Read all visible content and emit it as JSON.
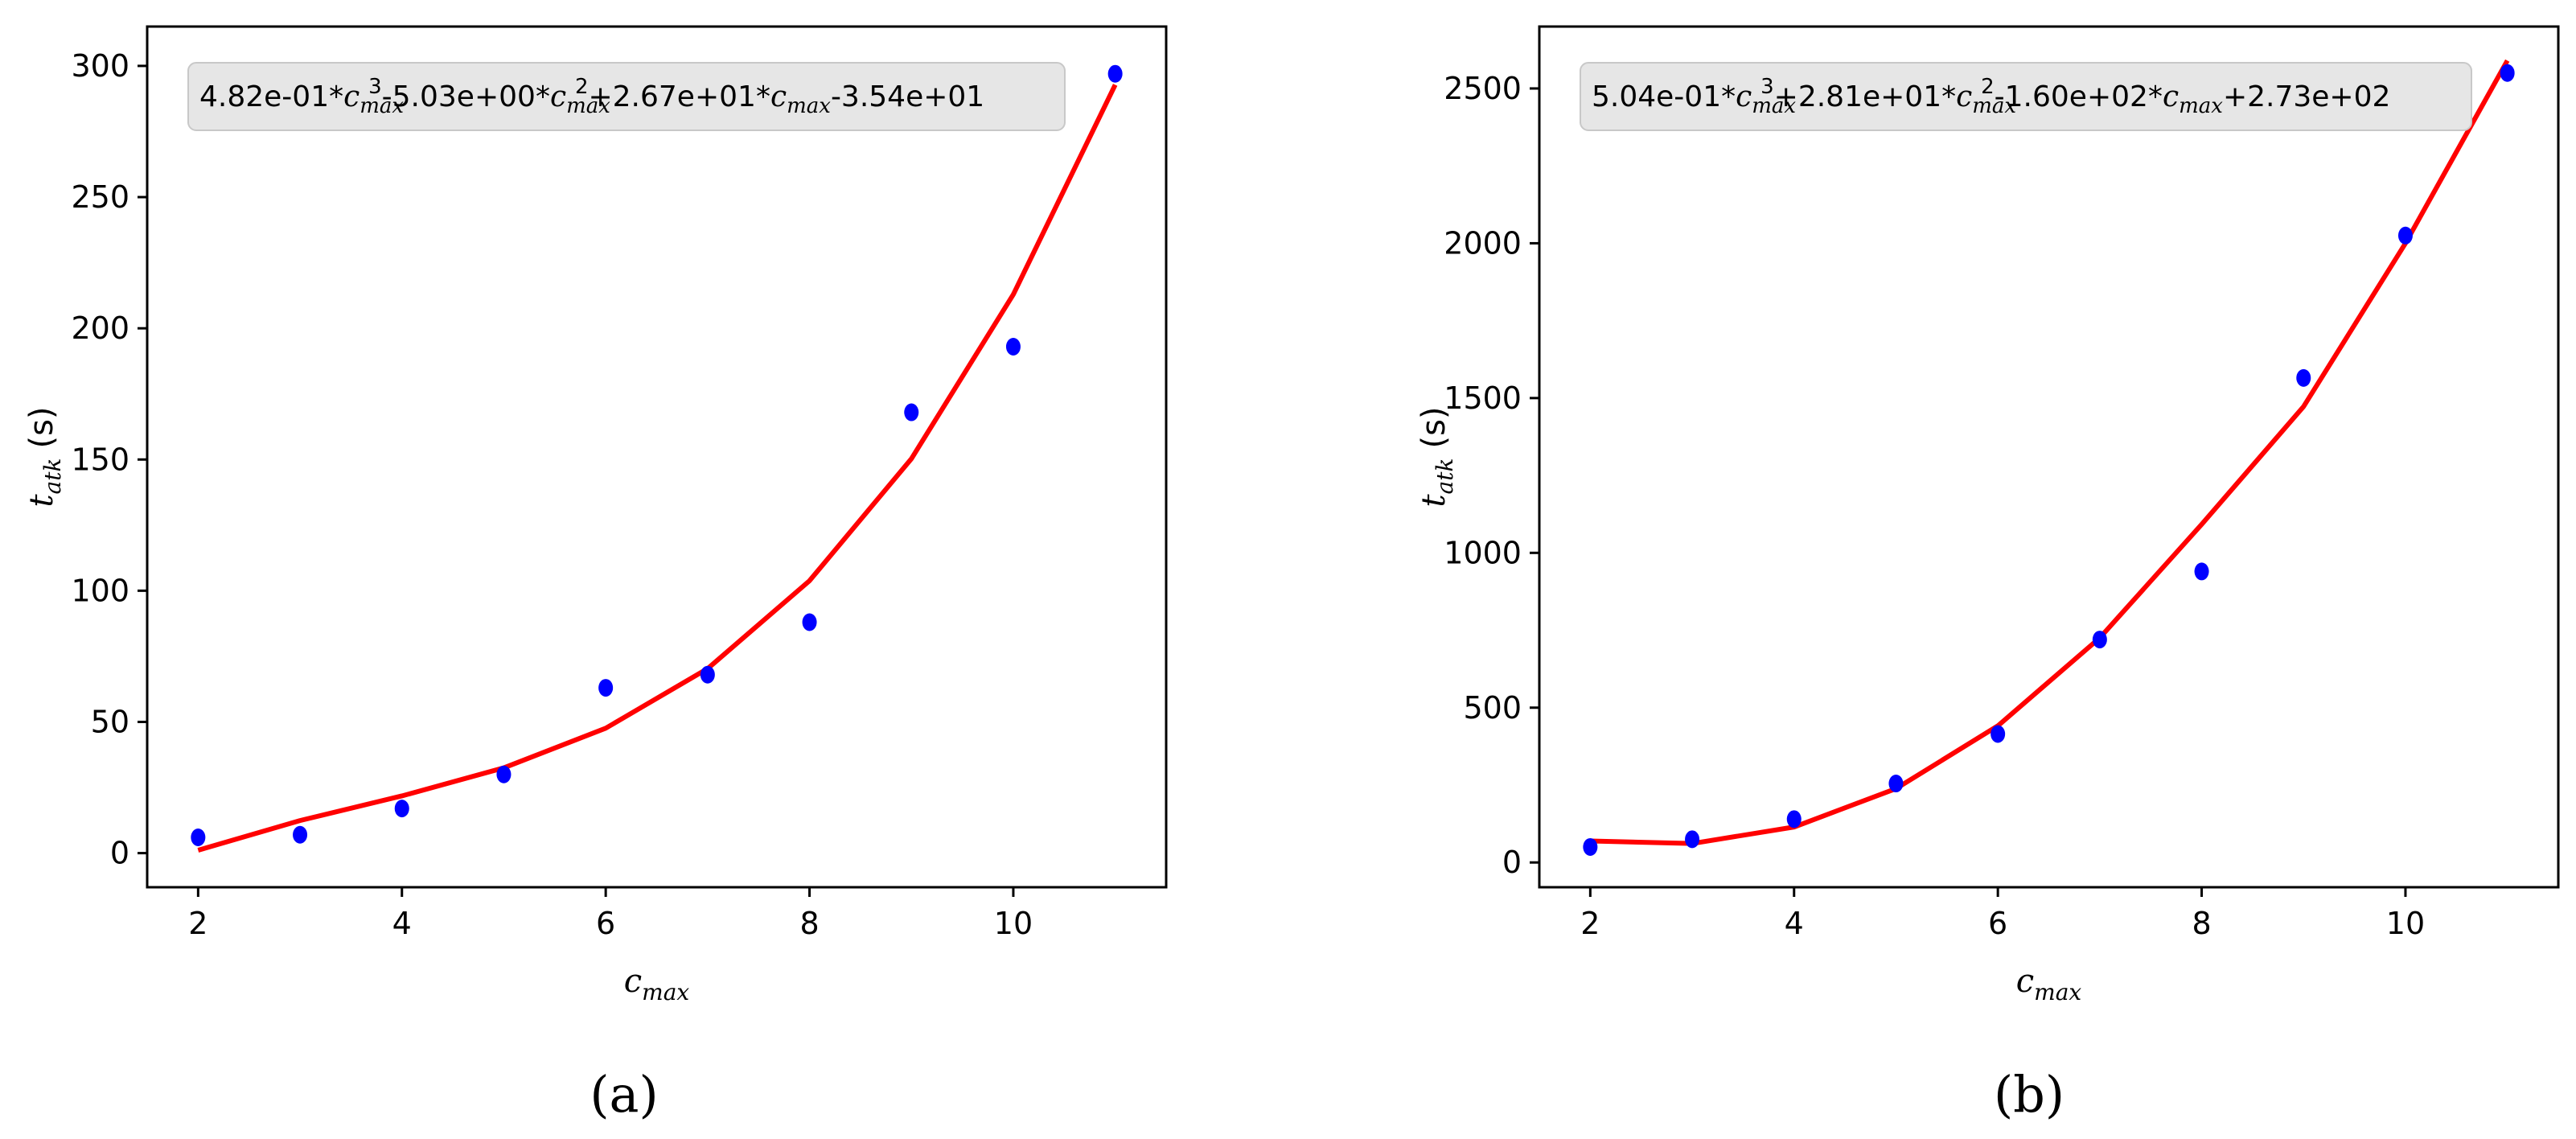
{
  "chart_data": [
    {
      "type": "scatter",
      "caption": "(a)",
      "equation": {
        "c3": "4.82e-01",
        "c2": "-5.03e+00",
        "c1": "+2.67e+01",
        "c0": "-3.54e+01"
      },
      "xlabel": "c",
      "xlabel_sub": "max",
      "ylabel": "t",
      "ylabel_sub": "atk",
      "ylabel_unit": "(s)",
      "xlim": [
        1.5,
        11.5
      ],
      "ylim": [
        -13,
        315
      ],
      "xticks": [
        2,
        4,
        6,
        8,
        10
      ],
      "yticks": [
        0,
        50,
        100,
        150,
        200,
        250,
        300
      ],
      "grid": false,
      "colors": {
        "points": "#0000ff",
        "fit": "#ff0000"
      },
      "series": [
        {
          "kind": "scatter",
          "x": [
            2,
            3,
            4,
            5,
            6,
            7,
            8,
            9,
            10,
            11
          ],
          "y": [
            6,
            7,
            17,
            30,
            63,
            68,
            88,
            168,
            193,
            297
          ]
        },
        {
          "kind": "line",
          "x": [
            2,
            3,
            4,
            5,
            6,
            7,
            8,
            9,
            10,
            11
          ],
          "y": [
            1.1,
            12.4,
            21.8,
            32.5,
            47.6,
            70.3,
            103.8,
            150.3,
            212.9,
            292.8
          ]
        }
      ]
    },
    {
      "type": "scatter",
      "caption": "(b)",
      "equation": {
        "c3": "5.04e-01",
        "c2": "+2.81e+01",
        "c1": "-1.60e+02",
        "c0": "+2.73e+02"
      },
      "xlabel": "c",
      "xlabel_sub": "max",
      "ylabel": "t",
      "ylabel_sub": "atk",
      "ylabel_unit": "(s)",
      "xlim": [
        1.5,
        11.5
      ],
      "ylim": [
        -80,
        2700
      ],
      "xticks": [
        2,
        4,
        6,
        8,
        10
      ],
      "yticks": [
        0,
        500,
        1000,
        1500,
        2000,
        2500
      ],
      "grid": false,
      "colors": {
        "points": "#0000ff",
        "fit": "#ff0000"
      },
      "series": [
        {
          "kind": "scatter",
          "x": [
            2,
            3,
            4,
            5,
            6,
            7,
            8,
            9,
            10,
            11
          ],
          "y": [
            50,
            75,
            140,
            255,
            415,
            720,
            940,
            1565,
            2025,
            2550
          ]
        },
        {
          "kind": "line",
          "x": [
            2,
            3,
            4,
            5,
            6,
            7,
            8,
            9,
            10,
            11
          ],
          "y": [
            69.4,
            61.2,
            114.5,
            238.4,
            441.3,
            725.5,
            1092.1,
            1472.5,
            2000.0,
            2590.1
          ]
        }
      ]
    }
  ]
}
